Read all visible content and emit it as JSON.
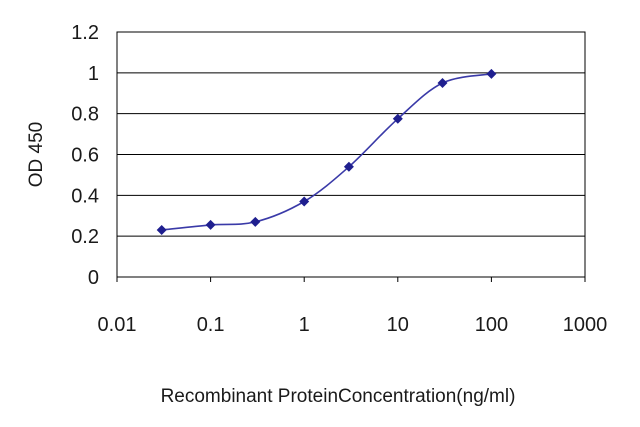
{
  "chart_data": {
    "type": "line",
    "title": "",
    "xlabel": "Recombinant ProteinConcentration(ng/ml)",
    "ylabel": "OD 450",
    "x_scale": "log",
    "xlim": [
      0.01,
      1000
    ],
    "ylim": [
      0,
      1.2
    ],
    "x_ticks": [
      "0.01",
      "0.1",
      "1",
      "10",
      "100",
      "1000"
    ],
    "y_ticks": [
      "0",
      "0.2",
      "0.4",
      "0.6",
      "0.8",
      "1",
      "1.2"
    ],
    "grid": "horizontal",
    "legend": "none",
    "series": [
      {
        "x": [
          0.03,
          0.1,
          0.3,
          1,
          3,
          10,
          30,
          100
        ],
        "y": [
          0.23,
          0.255,
          0.27,
          0.37,
          0.54,
          0.775,
          0.95,
          0.995
        ],
        "color": "#3a3aa8",
        "marker_color": "#1f1f8f"
      }
    ]
  }
}
